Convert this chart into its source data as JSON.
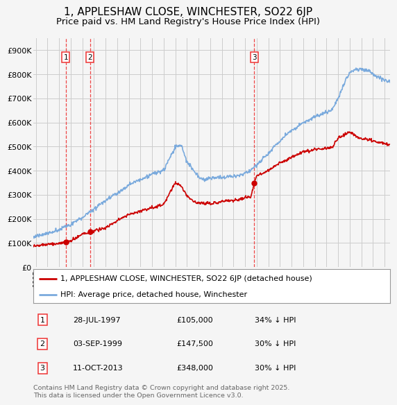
{
  "title": "1, APPLESHAW CLOSE, WINCHESTER, SO22 6JP",
  "subtitle": "Price paid vs. HM Land Registry's House Price Index (HPI)",
  "title_fontsize": 11,
  "subtitle_fontsize": 9.5,
  "legend_label_red": "1, APPLESHAW CLOSE, WINCHESTER, SO22 6JP (detached house)",
  "legend_label_blue": "HPI: Average price, detached house, Winchester",
  "footnote": "Contains HM Land Registry data © Crown copyright and database right 2025.\nThis data is licensed under the Open Government Licence v3.0.",
  "transactions": [
    {
      "num": 1,
      "date": "28-JUL-1997",
      "price": "£105,000",
      "hpi_diff": "34% ↓ HPI",
      "x_year": 1997.57
    },
    {
      "num": 2,
      "date": "03-SEP-1999",
      "price": "£147,500",
      "hpi_diff": "30% ↓ HPI",
      "x_year": 1999.67
    },
    {
      "num": 3,
      "date": "11-OCT-2013",
      "price": "£348,000",
      "hpi_diff": "30% ↓ HPI",
      "x_year": 2013.78
    }
  ],
  "transaction_prices": {
    "1": 105000,
    "2": 147500,
    "3": 348000
  },
  "red_color": "#cc0000",
  "blue_color": "#7aaadd",
  "vline_color": "#ee3333",
  "background_color": "#f5f5f5",
  "grid_color": "#cccccc",
  "ylim": [
    0,
    950000
  ],
  "yticks": [
    0,
    100000,
    200000,
    300000,
    400000,
    500000,
    600000,
    700000,
    800000,
    900000
  ],
  "ytick_labels": [
    "£0",
    "£100K",
    "£200K",
    "£300K",
    "£400K",
    "£500K",
    "£600K",
    "£700K",
    "£800K",
    "£900K"
  ],
  "xlim_start": 1994.8,
  "xlim_end": 2025.5,
  "xtick_years": [
    1995,
    1996,
    1997,
    1998,
    1999,
    2000,
    2001,
    2002,
    2003,
    2004,
    2005,
    2006,
    2007,
    2008,
    2009,
    2010,
    2011,
    2012,
    2013,
    2014,
    2015,
    2016,
    2017,
    2018,
    2019,
    2020,
    2021,
    2022,
    2023,
    2024,
    2025
  ],
  "hpi_knots_x": [
    1995,
    1996,
    1997,
    1998,
    1999,
    2000,
    2001,
    2002,
    2003,
    2004,
    2005,
    2006,
    2007,
    2007.5,
    2008,
    2008.5,
    2009,
    2009.5,
    2010,
    2010.5,
    2011,
    2011.5,
    2012,
    2012.5,
    2013,
    2013.5,
    2014,
    2014.5,
    2015,
    2015.5,
    2016,
    2016.5,
    2017,
    2017.5,
    2018,
    2018.5,
    2019,
    2019.5,
    2020,
    2020.5,
    2021,
    2021.5,
    2022,
    2022.5,
    2023,
    2023.5,
    2024,
    2024.5,
    2025,
    2025.3
  ],
  "hpi_knots_y": [
    128000,
    140000,
    155000,
    175000,
    205000,
    240000,
    275000,
    305000,
    340000,
    365000,
    385000,
    405000,
    500000,
    510000,
    440000,
    410000,
    380000,
    370000,
    375000,
    380000,
    380000,
    385000,
    385000,
    388000,
    395000,
    410000,
    430000,
    455000,
    475000,
    505000,
    530000,
    555000,
    570000,
    585000,
    600000,
    610000,
    625000,
    635000,
    645000,
    655000,
    700000,
    760000,
    810000,
    820000,
    820000,
    815000,
    800000,
    790000,
    780000,
    775000
  ],
  "red_knots_x": [
    1995,
    1996,
    1997,
    1997.57,
    1998,
    1999,
    1999.67,
    2000,
    2001,
    2002,
    2003,
    2004,
    2005,
    2006,
    2007,
    2007.5,
    2008,
    2008.5,
    2009,
    2009.5,
    2010,
    2010.5,
    2011,
    2011.5,
    2012,
    2012.5,
    2013,
    2013.5,
    2013.78,
    2014,
    2014.5,
    2015,
    2015.5,
    2016,
    2016.5,
    2017,
    2017.5,
    2018,
    2018.5,
    2019,
    2019.5,
    2020,
    2020.5,
    2021,
    2021.5,
    2022,
    2022.5,
    2023,
    2023.5,
    2024,
    2024.5,
    2025,
    2025.3
  ],
  "red_knots_y": [
    88000,
    95000,
    100000,
    105000,
    110000,
    140000,
    147500,
    155000,
    170000,
    200000,
    225000,
    240000,
    255000,
    265000,
    355000,
    340000,
    300000,
    280000,
    270000,
    268000,
    268000,
    270000,
    275000,
    278000,
    280000,
    285000,
    290000,
    295000,
    348000,
    380000,
    390000,
    400000,
    415000,
    430000,
    440000,
    455000,
    465000,
    475000,
    480000,
    490000,
    490000,
    490000,
    495000,
    530000,
    545000,
    555000,
    540000,
    530000,
    525000,
    520000,
    515000,
    510000,
    505000
  ]
}
